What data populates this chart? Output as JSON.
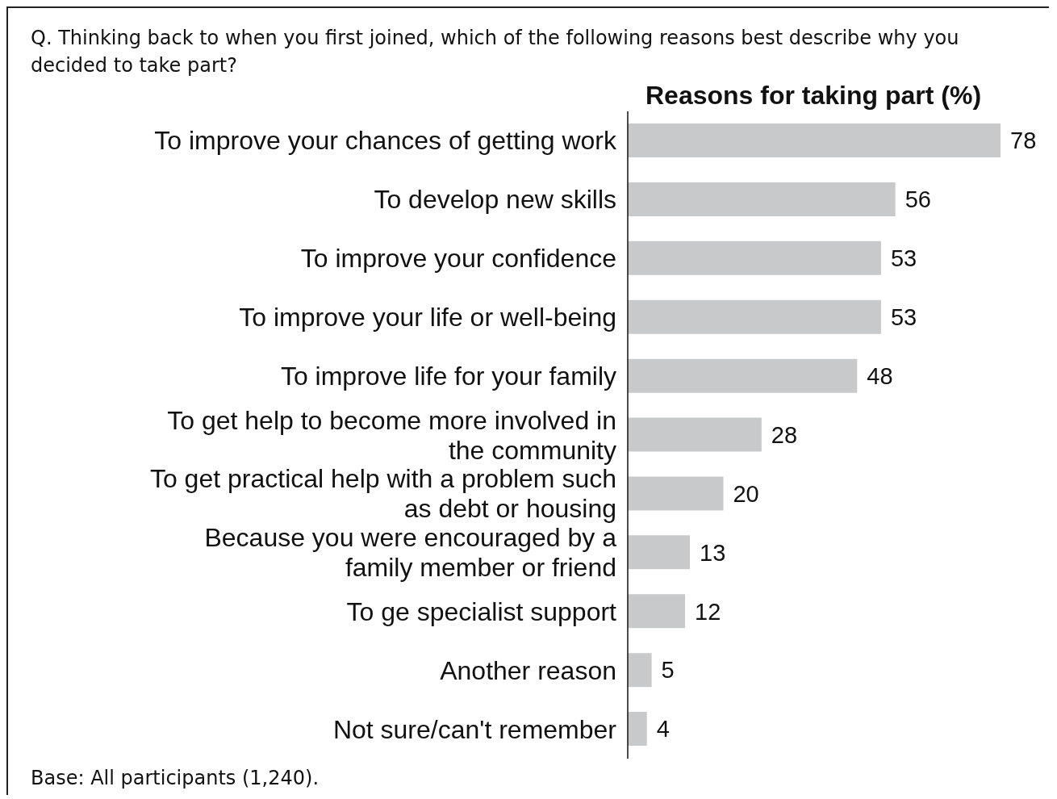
{
  "chart_data": {
    "type": "bar",
    "orientation": "horizontal",
    "title": "Reasons for taking part (%)",
    "subtitle": "Q. Thinking back to when you first joined, which of the following reasons best describe why you decided to take part?",
    "categories": [
      "To improve your chances of getting work",
      "To develop new skills",
      "To improve your confidence",
      "To improve your life or well-being",
      "To improve life for your family",
      "To get help to become more involved in the community",
      "To get practical help with a problem such as debt or housing",
      "Because you were encouraged by a family member or friend",
      "To ge specialist support",
      "Another reason",
      "Not sure/can't remember"
    ],
    "values": [
      78,
      56,
      53,
      53,
      48,
      28,
      20,
      13,
      12,
      5,
      4
    ],
    "color": "#c8c9ca",
    "data_labels": true,
    "annotations": [
      "Base: All participants (1,240)."
    ]
  }
}
